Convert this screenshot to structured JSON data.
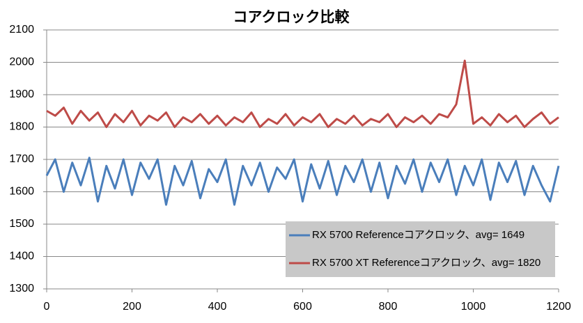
{
  "chart_data": {
    "type": "line",
    "title": "コアクロック比較",
    "x": [
      0,
      20,
      40,
      60,
      80,
      100,
      120,
      140,
      160,
      180,
      200,
      220,
      240,
      260,
      280,
      300,
      320,
      340,
      360,
      380,
      400,
      420,
      440,
      460,
      480,
      500,
      520,
      540,
      560,
      580,
      600,
      620,
      640,
      660,
      680,
      700,
      720,
      740,
      760,
      780,
      800,
      820,
      840,
      860,
      880,
      900,
      920,
      940,
      960,
      980,
      1000,
      1020,
      1040,
      1060,
      1080,
      1100,
      1120,
      1140,
      1160,
      1180,
      1200
    ],
    "series": [
      {
        "name": "RX 5700 Referenceコアクロック、avg= 1649",
        "color": "#4a7ebb",
        "values": [
          1650,
          1700,
          1600,
          1690,
          1620,
          1705,
          1570,
          1680,
          1610,
          1700,
          1590,
          1690,
          1640,
          1700,
          1560,
          1680,
          1620,
          1695,
          1580,
          1670,
          1630,
          1700,
          1560,
          1680,
          1620,
          1690,
          1600,
          1675,
          1640,
          1700,
          1570,
          1685,
          1610,
          1695,
          1590,
          1680,
          1630,
          1700,
          1600,
          1690,
          1580,
          1680,
          1625,
          1700,
          1600,
          1690,
          1630,
          1700,
          1590,
          1680,
          1620,
          1700,
          1575,
          1690,
          1630,
          1695,
          1590,
          1680,
          1620,
          1570,
          1680
        ]
      },
      {
        "name": "RX 5700 XT Referenceコアクロック、avg= 1820",
        "color": "#be4b48",
        "values": [
          1850,
          1835,
          1860,
          1810,
          1850,
          1820,
          1845,
          1800,
          1840,
          1815,
          1850,
          1805,
          1835,
          1820,
          1845,
          1800,
          1830,
          1815,
          1840,
          1810,
          1835,
          1805,
          1830,
          1815,
          1845,
          1800,
          1825,
          1810,
          1840,
          1805,
          1830,
          1815,
          1840,
          1800,
          1825,
          1810,
          1835,
          1805,
          1825,
          1815,
          1840,
          1800,
          1830,
          1815,
          1835,
          1810,
          1840,
          1830,
          1870,
          2005,
          1810,
          1830,
          1805,
          1840,
          1815,
          1835,
          1800,
          1825,
          1845,
          1810,
          1830
        ]
      }
    ],
    "xlim": [
      0,
      1200
    ],
    "xticks": [
      0,
      200,
      400,
      600,
      800,
      1000,
      1200
    ],
    "ylim": [
      1300,
      2100
    ],
    "yticks": [
      1300,
      1400,
      1500,
      1600,
      1700,
      1800,
      1900,
      2000,
      2100
    ],
    "grid": true,
    "legend": "lower right"
  }
}
